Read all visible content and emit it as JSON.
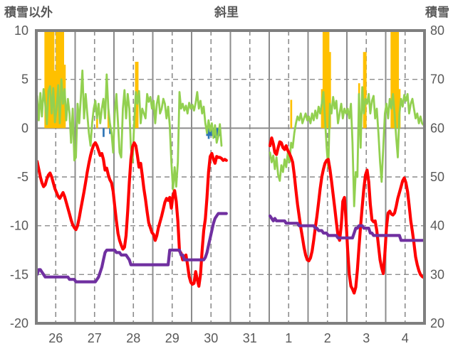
{
  "header": {
    "left_label": "積雪以外",
    "title": "斜里",
    "right_label": "積雪"
  },
  "chart_data": {
    "type": "line",
    "title": "斜里",
    "left_axis": {
      "title": "積雪以外",
      "ticks": [
        10,
        5,
        0,
        -5,
        -10,
        -15,
        -20
      ],
      "range": [
        -20,
        10
      ]
    },
    "right_axis": {
      "title": "積雪",
      "ticks": [
        80,
        70,
        60,
        50,
        40,
        30,
        20
      ],
      "range": [
        20,
        80
      ]
    },
    "x_axis": {
      "day_labels": [
        "26",
        "27",
        "28",
        "29",
        "30",
        "31",
        "1",
        "2",
        "3",
        "4"
      ],
      "points_per_day": 24,
      "grid": "solid at day boundaries, dashed at midday"
    },
    "colors": {
      "red_line": "#FF0000",
      "green_line": "#92D050",
      "purple_line": "#7030A0",
      "orange_bars": "#FFC000",
      "blue_bars": "#2E74B5",
      "grid": "#8C8C8C",
      "frame": "#7F7F7F",
      "text": "#595959"
    },
    "notes": "Hourly weather-style chart. Red and green lines plus orange/blue bars read on the left axis; purple snow-depth line reads on the right axis (cm). Data gap covers late day 30 and all of day 31. Orange bar values of 10.5 are clipped at the axis top.",
    "days": [
      {
        "label": "26",
        "red": [
          -3.4,
          -4.2,
          -5.0,
          -5.6,
          -6.0,
          -5.8,
          -5.2,
          -4.8,
          -4.6,
          -5.0,
          -5.6,
          -6.2,
          -6.6,
          -7.0,
          -7.2,
          -6.9,
          -6.6,
          -7.0,
          -7.6,
          -8.2,
          -8.8,
          -9.4,
          -9.9,
          -10.2
        ],
        "green": [
          3.3,
          0.8,
          3.6,
          1.2,
          4.0,
          2.5,
          0.4,
          3.8,
          4.3,
          1.5,
          4.1,
          0.6,
          2.0,
          4.4,
          0.5,
          5.0,
          2.5,
          4.0,
          0.8,
          3.0,
          1.5,
          -1.5,
          2.0,
          -3.3
        ],
        "snow": [
          30,
          31,
          31,
          30.5,
          30,
          29.5,
          29.5,
          29.5,
          29.5,
          29.5,
          29.5,
          29.5,
          29.5,
          29.5,
          29.5,
          29.5,
          29.5,
          29.5,
          29.5,
          29.5,
          29,
          29,
          29,
          29
        ]
      },
      {
        "label": "27",
        "red": [
          -10.4,
          -10.0,
          -9.2,
          -8.3,
          -7.4,
          -6.5,
          -5.5,
          -4.5,
          -3.6,
          -2.8,
          -2.2,
          -1.7,
          -1.5,
          -1.8,
          -2.3,
          -2.8,
          -2.6,
          -3.2,
          -4.3,
          -4.1,
          -4.8,
          -5.3,
          -5.6,
          -6.5
        ],
        "green": [
          -3.0,
          2.5,
          0.5,
          3.0,
          5.9,
          1.0,
          3.5,
          1.5,
          -0.5,
          -1.8,
          0.5,
          2.0,
          2.8,
          1.0,
          2.5,
          0.5,
          2.0,
          3.0,
          1.0,
          5.5,
          2.0,
          0.5,
          -0.5,
          -2.5
        ],
        "snow": [
          28.5,
          28.5,
          28.5,
          28.5,
          28.5,
          28.5,
          28.5,
          28.5,
          28.5,
          28.5,
          28.5,
          28.5,
          28.5,
          29,
          29.5,
          30.5,
          31.5,
          33,
          34.5,
          35,
          35,
          35,
          35,
          35
        ]
      },
      {
        "label": "28",
        "red": [
          -8.0,
          -9.5,
          -10.8,
          -11.5,
          -12.0,
          -12.4,
          -12.2,
          -11.0,
          -8.5,
          -5.5,
          -3.2,
          -1.9,
          -1.5,
          -1.8,
          -2.8,
          -4.0,
          -3.6,
          -4.8,
          -6.2,
          -7.3,
          -8.6,
          -9.7,
          -10.2,
          -10.7
        ],
        "green": [
          1.5,
          3.5,
          0.5,
          -2.5,
          -3.0,
          2.0,
          3.9,
          1.0,
          3.5,
          2.0,
          -2.0,
          -3.5,
          0.5,
          3.7,
          2.5,
          3.8,
          0.5,
          2.0,
          1.5,
          1.0,
          3.5,
          2.7,
          3.2,
          2.0
        ],
        "snow": [
          35,
          34.5,
          34.5,
          34.5,
          34,
          34,
          34,
          34,
          33.5,
          33,
          32,
          32,
          32,
          32,
          32,
          32,
          32,
          32,
          32,
          32,
          32,
          32,
          32,
          32
        ]
      },
      {
        "label": "29",
        "red": [
          -10.9,
          -11.5,
          -11.0,
          -10.2,
          -9.6,
          -9.0,
          -8.3,
          -7.6,
          -7.2,
          -7.4,
          -7.1,
          -8.2,
          -6.9,
          -6.4,
          -7.5,
          -9.5,
          -12.6,
          -12.8,
          -13.5,
          -13.2,
          -13.0,
          -14.0,
          -15.2,
          -15.8
        ],
        "green": [
          2.8,
          0.5,
          2.5,
          3.3,
          1.5,
          2.0,
          3.0,
          2.5,
          1.0,
          2.2,
          0.3,
          -3.5,
          -6.3,
          -4.0,
          -6.0,
          -3.5,
          3.7,
          2.0,
          2.5,
          1.8,
          2.3,
          1.5,
          2.6,
          2.0
        ],
        "snow": [
          32,
          32,
          32,
          32,
          32,
          32,
          32,
          32,
          32,
          32,
          35,
          35,
          35,
          35,
          35,
          35,
          35,
          34,
          34,
          33,
          33,
          33,
          33,
          33
        ]
      },
      {
        "label": "30",
        "red": [
          -16.0,
          -15.9,
          -14.7,
          -15.5,
          -16.2,
          -15.0,
          -12.5,
          -10.5,
          -9.3,
          -7.1,
          -4.5,
          -2.9,
          -2.6,
          -3.2,
          -3.6,
          -2.9,
          -3.0,
          -3.0,
          -3.1,
          -3.3,
          -3.2,
          -3.3,
          null,
          null
        ],
        "green": [
          2.4,
          1.8,
          2.6,
          3.7,
          2.0,
          2.8,
          1.5,
          2.2,
          0.5,
          -0.5,
          0.8,
          -0.3,
          0.5,
          -1.0,
          0.3,
          -1.5,
          -0.8,
          0.4,
          -1.8,
          null,
          null,
          null,
          null,
          null
        ],
        "snow": [
          33,
          33,
          33,
          33,
          33,
          33,
          33,
          33,
          33.5,
          34.5,
          36,
          37.5,
          39,
          40.5,
          41.5,
          42,
          42.5,
          42.5,
          42.5,
          42.5,
          42.5,
          42.5,
          null,
          null
        ]
      },
      {
        "label": "31",
        "red": [
          null,
          null,
          null,
          null,
          null,
          null,
          null,
          null,
          null,
          null,
          null,
          null,
          null,
          null,
          null,
          null,
          null,
          null,
          null,
          null,
          null,
          null,
          null,
          null
        ],
        "green": [
          null,
          null,
          null,
          null,
          null,
          null,
          null,
          null,
          null,
          null,
          null,
          null,
          null,
          null,
          null,
          null,
          null,
          null,
          null,
          null,
          null,
          null,
          null,
          null
        ],
        "snow": [
          null,
          null,
          null,
          null,
          null,
          null,
          null,
          null,
          null,
          null,
          null,
          null,
          null,
          null,
          null,
          null,
          null,
          null,
          null,
          null,
          null,
          null,
          null,
          null
        ]
      },
      {
        "label": "1",
        "red": [
          -1.8,
          -1.0,
          -1.6,
          -2.5,
          -2.7,
          -2.0,
          -1.4,
          -1.5,
          -2.0,
          -2.2,
          -1.8,
          -2.3,
          -2.6,
          -3.0,
          -3.5,
          -4.8,
          -6.4,
          -7.8,
          -9.0,
          -10.2,
          -11.2,
          -12.2,
          -13.0,
          -13.5
        ],
        "green": [
          -2.5,
          -3.5,
          -2.8,
          -4.2,
          -3.0,
          -4.8,
          -5.4,
          -3.8,
          -4.5,
          -3.2,
          -4.0,
          -2.5,
          -3.5,
          -1.5,
          -2.0,
          -0.5,
          0.5,
          1.2,
          0.8,
          1.5,
          0.5,
          1.0,
          1.5,
          0.8
        ],
        "snow": [
          42,
          41.5,
          41,
          41.5,
          41,
          41,
          41,
          41,
          41,
          41,
          40.5,
          40.5,
          40.5,
          40.5,
          40.5,
          40.5,
          40.5,
          40.5,
          40,
          40,
          40,
          40,
          40,
          40
        ]
      },
      {
        "label": "2",
        "red": [
          -13.6,
          -13.3,
          -12.6,
          -11.5,
          -10.2,
          -9.0,
          -7.6,
          -6.2,
          -5.0,
          -4.2,
          -3.6,
          -3.3,
          -3.2,
          -4.2,
          -5.4,
          -6.8,
          -8.2,
          -9.6,
          -11.0,
          -11.5,
          -10.0,
          -7.5,
          -7.1,
          -9.5
        ],
        "green": [
          1.2,
          0.5,
          1.5,
          0.8,
          1.8,
          1.0,
          2.2,
          1.5,
          2.5,
          3.7,
          1.0,
          -2.0,
          -4.1,
          2.5,
          1.5,
          3.2,
          2.0,
          2.8,
          0.5,
          1.5,
          2.5,
          1.0,
          2.0,
          1.5
        ],
        "snow": [
          40,
          40,
          40,
          40,
          39.5,
          39.5,
          39,
          39,
          39,
          38.5,
          38.5,
          38.5,
          38,
          38,
          38,
          38,
          38,
          38,
          37.5,
          37.5,
          37.5,
          37.5,
          37.5,
          37.5
        ]
      },
      {
        "label": "3",
        "red": [
          -12.5,
          -15.0,
          -16.2,
          -16.5,
          -16.9,
          -16.3,
          -14.5,
          -12.2,
          -10.0,
          -8.0,
          -6.2,
          -4.8,
          -4.3,
          -5.5,
          -7.8,
          -9.4,
          -9.6,
          -9.5,
          -10.5,
          -12.0,
          -13.5,
          -14.3,
          -14.9,
          -12.8
        ],
        "green": [
          2.0,
          1.0,
          2.5,
          -1.5,
          -8.0,
          -4.5,
          -5.0,
          3.5,
          -2.0,
          4.2,
          1.5,
          3.0,
          2.5,
          3.5,
          1.5,
          2.8,
          3.3,
          1.0,
          2.0,
          -0.5,
          -3.5,
          -5.5,
          -2.0,
          1.5
        ],
        "snow": [
          37.5,
          37.5,
          37.5,
          37.5,
          38.5,
          39.5,
          39.5,
          40,
          40,
          40,
          39.5,
          39.5,
          39.5,
          39.5,
          38.5,
          38.5,
          38,
          38,
          38,
          38,
          38,
          38,
          38,
          38
        ]
      },
      {
        "label": "4",
        "red": [
          -10.2,
          -8.7,
          -8.5,
          -8.8,
          -8.9,
          -8.7,
          -8.0,
          -7.2,
          -6.6,
          -6.0,
          -5.4,
          -5.1,
          -5.6,
          -6.5,
          -7.9,
          -9.5,
          -10.6,
          -11.8,
          -13.2,
          -14.0,
          -14.6,
          -15.0,
          -15.2,
          -15.3
        ],
        "green": [
          2.5,
          1.0,
          3.0,
          2.0,
          3.5,
          1.5,
          -1.0,
          -3.0,
          1.5,
          3.0,
          2.2,
          3.4,
          2.8,
          3.5,
          1.5,
          2.5,
          3.0,
          2.0,
          1.0,
          1.5,
          0.5,
          1.2,
          0.5,
          0.3
        ],
        "snow": [
          38,
          38,
          38,
          38,
          38,
          38,
          38,
          38,
          38,
          37,
          37,
          37,
          37,
          37,
          37,
          37,
          37,
          37,
          37,
          37,
          37,
          37,
          37,
          37
        ]
      }
    ],
    "orange_bars": [
      [
        0,
        5,
        10.5
      ],
      [
        0,
        6,
        10.5
      ],
      [
        0,
        7,
        10.5
      ],
      [
        0,
        8,
        10.5
      ],
      [
        0,
        9,
        10.5
      ],
      [
        0,
        10,
        10.5
      ],
      [
        0,
        11,
        5.9
      ],
      [
        0,
        12,
        10.5
      ],
      [
        0,
        13,
        10.5
      ],
      [
        0,
        14,
        10.5
      ],
      [
        0,
        15,
        10.5
      ],
      [
        0,
        16,
        10.5
      ],
      [
        0,
        17,
        6.5
      ],
      [
        1,
        13,
        1.0
      ],
      [
        1,
        20,
        2.0
      ],
      [
        2,
        13,
        6.8
      ],
      [
        2,
        14,
        6.8
      ],
      [
        6,
        13,
        2.9
      ],
      [
        7,
        8,
        4.0
      ],
      [
        7,
        9,
        10.5
      ],
      [
        7,
        10,
        10.5
      ],
      [
        7,
        11,
        10.5
      ],
      [
        7,
        12,
        10.5
      ],
      [
        7,
        13,
        7.8
      ],
      [
        8,
        7,
        4.6
      ],
      [
        8,
        10,
        7.8
      ],
      [
        8,
        11,
        7.8
      ],
      [
        9,
        3,
        10.5
      ],
      [
        9,
        4,
        10.5
      ],
      [
        9,
        5,
        10.5
      ],
      [
        9,
        6,
        10.5
      ],
      [
        9,
        7,
        10.5
      ],
      [
        9,
        8,
        4.0
      ]
    ],
    "blue_bars": [
      [
        1,
        17,
        -0.9
      ],
      [
        1,
        21,
        -0.6
      ],
      [
        4,
        9,
        -0.8
      ],
      [
        4,
        10,
        -1.1
      ],
      [
        4,
        11,
        -0.8
      ],
      [
        4,
        12,
        -0.8
      ],
      [
        4,
        13,
        -0.8
      ],
      [
        4,
        14,
        -1.0
      ],
      [
        4,
        15,
        -0.8
      ],
      [
        4,
        16,
        -0.8
      ],
      [
        4,
        17,
        -0.8
      ]
    ]
  }
}
